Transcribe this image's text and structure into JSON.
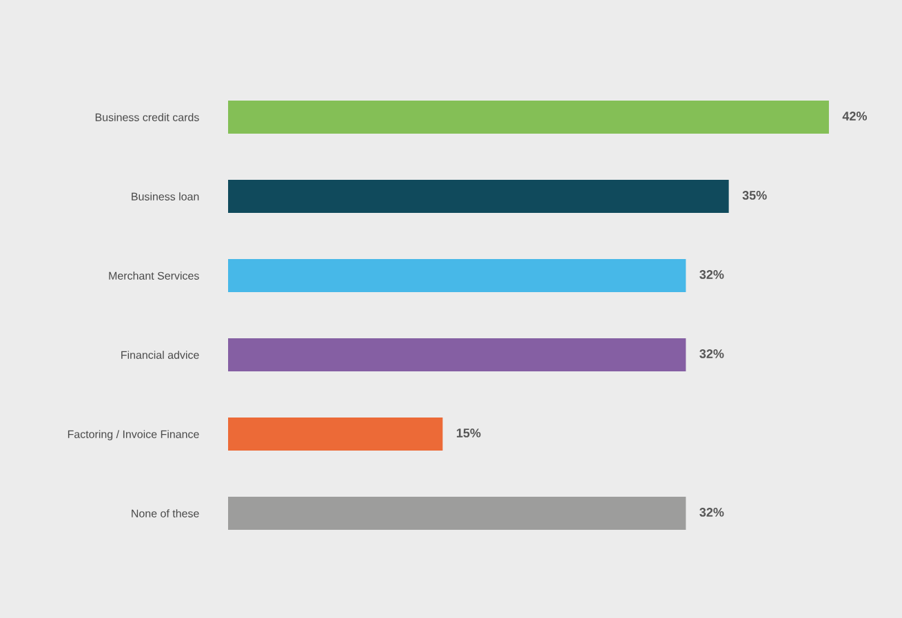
{
  "chart_data": {
    "type": "bar",
    "orientation": "horizontal",
    "categories": [
      "Business credit cards",
      "Business loan",
      "Merchant Services",
      "Financial advice",
      "Factoring / Invoice Finance",
      "None of these"
    ],
    "values": [
      42,
      35,
      32,
      32,
      15,
      32
    ],
    "colors": [
      "#84bf56",
      "#104a5c",
      "#47b8e8",
      "#855fa3",
      "#ec6a37",
      "#9d9d9c"
    ],
    "value_labels": [
      "42%",
      "35%",
      "32%",
      "32%",
      "15%",
      "32%"
    ],
    "grid": false,
    "legend": false,
    "tick_labels": "y"
  }
}
